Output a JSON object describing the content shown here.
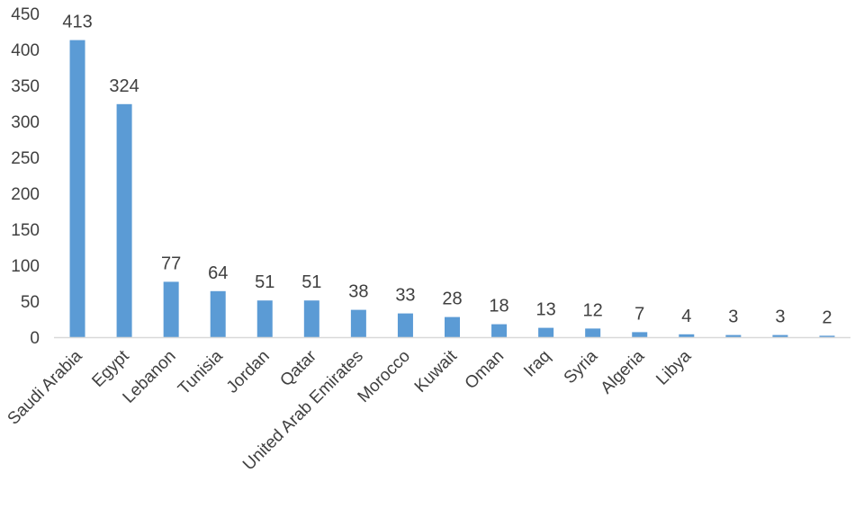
{
  "chart_data": {
    "type": "bar",
    "title": "",
    "xlabel": "",
    "ylabel": "",
    "categories": [
      "Saudi Arabia",
      "Egypt",
      "Lebanon",
      "Tunisia",
      "Jordan",
      "Qatar",
      "United Arab Emirates",
      "Morocco",
      "Kuwait",
      "Oman",
      "Iraq",
      "Syria",
      "Algeria",
      "Libya",
      "",
      "",
      ""
    ],
    "values": [
      413,
      324,
      77,
      64,
      51,
      51,
      38,
      33,
      28,
      18,
      13,
      12,
      7,
      4,
      3,
      3,
      2
    ],
    "data_labels": [
      "413",
      "324",
      "77",
      "64",
      "51",
      "51",
      "38",
      "33",
      "28",
      "18",
      "13",
      "12",
      "7",
      "4",
      "3",
      "3",
      "2"
    ],
    "ylim": [
      0,
      450
    ],
    "yticks": [
      "0",
      "50",
      "100",
      "150",
      "200",
      "250",
      "300",
      "350",
      "400",
      "450"
    ],
    "grid": false,
    "legend": "none",
    "bar_color": "#5b9bd5",
    "axis_color": "#d9d9d9",
    "text_color": "#404040"
  }
}
